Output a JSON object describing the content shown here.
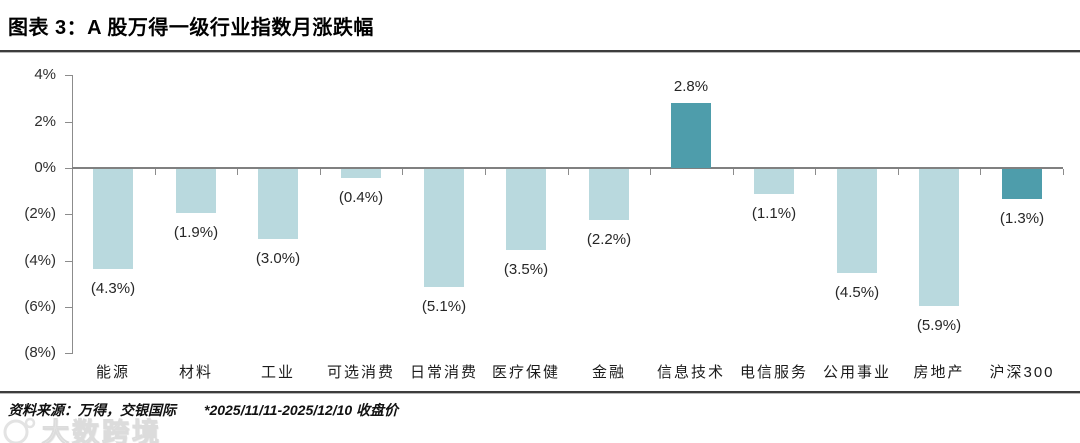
{
  "header": {
    "title": "图表 3：A 股万得一级行业指数月涨跌幅"
  },
  "footer": {
    "source": "资料来源：万得，交银国际",
    "note": "*2025/11/11-2025/12/10 收盘价"
  },
  "watermark": {
    "text": "大数跨境"
  },
  "colors": {
    "bar_light": "#b9d9de",
    "bar_dark": "#4e9dab",
    "axis": "#8c8c8c",
    "label": "#262626"
  },
  "chart_data": {
    "type": "bar",
    "title": "A 股万得一级行业指数月涨跌幅",
    "xlabel": "",
    "ylabel": "",
    "unit": "%",
    "grid": false,
    "legend": "none",
    "categories": [
      "能源",
      "材料",
      "工业",
      "可选消费",
      "日常消费",
      "医疗保健",
      "金融",
      "信息技术",
      "电信服务",
      "公用事业",
      "房地产",
      "沪深300"
    ],
    "values": [
      -4.3,
      -1.9,
      -3.0,
      -0.4,
      -5.1,
      -3.5,
      -2.2,
      2.8,
      -1.1,
      -4.5,
      -5.9,
      -1.3
    ],
    "labels": [
      "(4.3%)",
      "(1.9%)",
      "(3.0%)",
      "(0.4%)",
      "(5.1%)",
      "(3.5%)",
      "(2.2%)",
      "2.8%",
      "(1.1%)",
      "(4.5%)",
      "(5.9%)",
      "(1.3%)"
    ],
    "emphasis": [
      false,
      false,
      false,
      false,
      false,
      false,
      false,
      true,
      false,
      false,
      false,
      true
    ],
    "y_axis": {
      "ylim": [
        -8,
        4
      ],
      "ticks": [
        4,
        2,
        0,
        -2,
        -4,
        -6,
        -8
      ],
      "tick_labels": [
        "4%",
        "2%",
        "0%",
        "(2%)",
        "(4%)",
        "(6%)",
        "(8%)"
      ]
    }
  }
}
